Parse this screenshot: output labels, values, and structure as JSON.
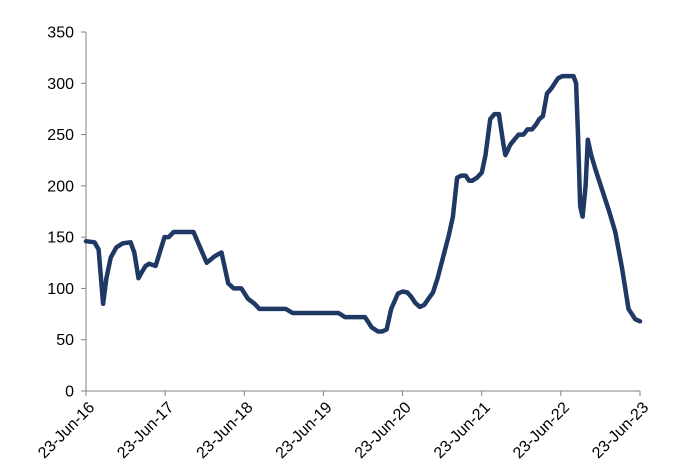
{
  "chart_data": {
    "type": "line",
    "title": "",
    "xlabel": "",
    "ylabel": "",
    "ylim": [
      0,
      350
    ],
    "yticks": [
      0,
      50,
      100,
      150,
      200,
      250,
      300,
      350
    ],
    "xlim": [
      "2016-06-23",
      "2023-06-23"
    ],
    "xticks": [
      "23-Jun-16",
      "23-Jun-17",
      "23-Jun-18",
      "23-Jun-19",
      "23-Jun-20",
      "23-Jun-21",
      "23-Jun-22",
      "23-Jun-23"
    ],
    "grid": false,
    "legend": "none",
    "colors": {
      "line": "#1f3864",
      "axis": "#808080",
      "text": "#000000"
    },
    "series": [
      {
        "x": [
          "2016-06-23",
          "2016-08-01",
          "2016-08-20",
          "2016-09-10",
          "2016-09-25",
          "2016-10-15",
          "2016-11-10",
          "2016-12-10",
          "2017-01-15",
          "2017-02-01",
          "2017-02-20",
          "2017-03-05",
          "2017-03-25",
          "2017-04-10",
          "2017-05-10",
          "2017-06-20",
          "2017-07-10",
          "2017-08-01",
          "2017-09-01",
          "2017-10-01",
          "2017-11-01",
          "2018-01-01",
          "2018-02-05",
          "2018-02-20",
          "2018-03-10",
          "2018-04-10",
          "2018-05-05",
          "2018-05-20",
          "2018-06-10",
          "2018-07-10",
          "2018-08-10",
          "2018-09-01",
          "2018-10-01",
          "2018-11-01",
          "2018-12-01",
          "2019-01-01",
          "2019-02-01",
          "2019-03-01",
          "2019-04-01",
          "2019-05-01",
          "2019-06-01",
          "2019-07-01",
          "2019-08-01",
          "2019-09-01",
          "2019-10-01",
          "2019-11-01",
          "2019-12-01",
          "2020-01-01",
          "2020-02-01",
          "2020-03-01",
          "2020-03-20",
          "2020-04-10",
          "2020-05-01",
          "2020-06-01",
          "2020-06-23",
          "2020-07-15",
          "2020-08-01",
          "2020-08-20",
          "2020-09-10",
          "2020-10-01",
          "2020-10-20",
          "2020-11-10",
          "2020-12-01",
          "2021-01-01",
          "2021-01-20",
          "2021-02-10",
          "2021-03-01",
          "2021-03-20",
          "2021-04-10",
          "2021-04-25",
          "2021-05-10",
          "2021-06-01",
          "2021-06-23",
          "2021-07-10",
          "2021-08-01",
          "2021-08-20",
          "2021-09-10",
          "2021-10-01",
          "2021-10-10",
          "2021-11-01",
          "2021-11-20",
          "2021-12-10",
          "2022-01-01",
          "2022-01-20",
          "2022-02-10",
          "2022-03-01",
          "2022-03-15",
          "2022-04-01",
          "2022-04-20",
          "2022-05-10",
          "2022-06-10",
          "2022-07-01",
          "2022-07-20",
          "2022-08-05",
          "2022-08-20",
          "2022-09-01",
          "2022-09-10",
          "2022-09-20",
          "2022-10-01",
          "2022-10-15",
          "2022-10-25",
          "2022-11-10",
          "2022-12-01",
          "2023-01-01",
          "2023-02-01",
          "2023-03-01",
          "2023-04-01",
          "2023-05-01",
          "2023-06-01",
          "2023-06-23"
        ],
        "values": [
          146,
          145,
          138,
          85,
          110,
          130,
          140,
          144,
          145,
          135,
          110,
          115,
          122,
          124,
          122,
          150,
          150,
          155,
          155,
          155,
          155,
          125,
          131,
          133,
          135,
          105,
          100,
          100,
          100,
          90,
          85,
          80,
          80,
          80,
          80,
          80,
          76,
          76,
          76,
          76,
          76,
          76,
          76,
          76,
          72,
          72,
          72,
          72,
          62,
          58,
          58,
          60,
          80,
          95,
          97,
          96,
          92,
          86,
          82,
          84,
          90,
          96,
          110,
          135,
          150,
          170,
          208,
          210,
          210,
          205,
          205,
          208,
          213,
          230,
          265,
          270,
          270,
          240,
          230,
          240,
          245,
          250,
          250,
          255,
          255,
          260,
          265,
          268,
          290,
          295,
          305,
          307,
          307,
          307,
          307,
          300,
          250,
          180,
          170,
          200,
          245,
          230,
          215,
          195,
          175,
          155,
          120,
          80,
          70,
          68
        ]
      }
    ]
  }
}
